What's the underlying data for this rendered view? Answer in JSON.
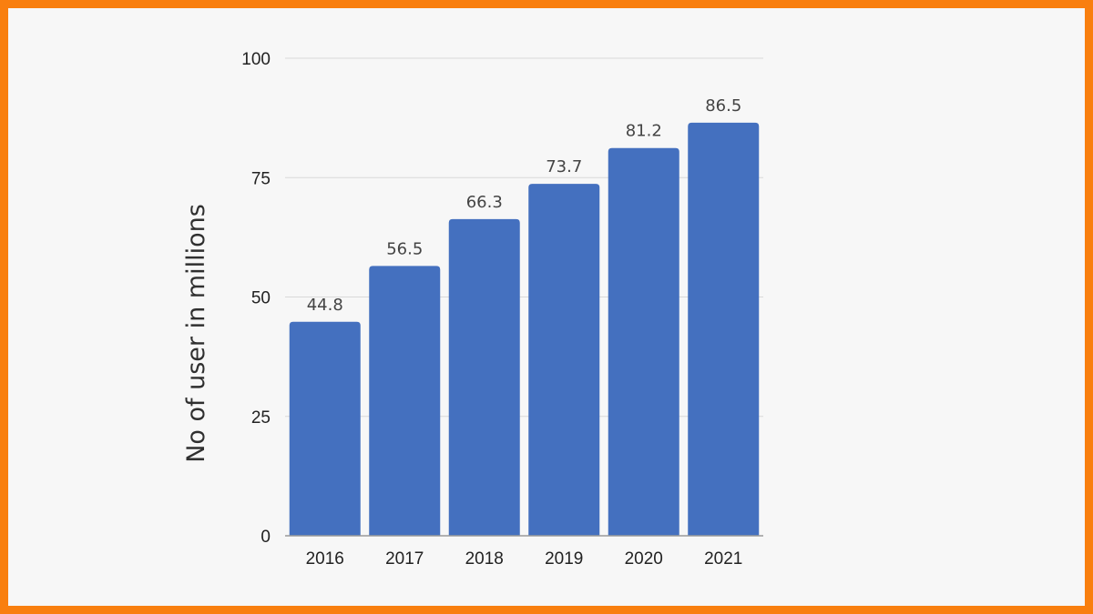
{
  "colors": {
    "border": "#f97f0f",
    "background": "#f7f7f7",
    "bar": "#4470bf",
    "grid": "#d9d9d9",
    "axis": "#9a9a9a"
  },
  "chart_data": {
    "type": "bar",
    "categories": [
      "2016",
      "2017",
      "2018",
      "2019",
      "2020",
      "2021"
    ],
    "values": [
      44.8,
      56.5,
      66.3,
      73.7,
      81.2,
      86.5
    ],
    "value_labels": [
      "44.8",
      "56.5",
      "66.3",
      "73.7",
      "81.2",
      "86.5"
    ],
    "title": "",
    "xlabel": "",
    "ylabel": "No of user in millions",
    "ylim": [
      0,
      100
    ],
    "yticks": [
      "0",
      "25",
      "50",
      "75",
      "100"
    ],
    "ytick_values": [
      0,
      25,
      50,
      75,
      100
    ],
    "grid": true,
    "legend": "none"
  }
}
